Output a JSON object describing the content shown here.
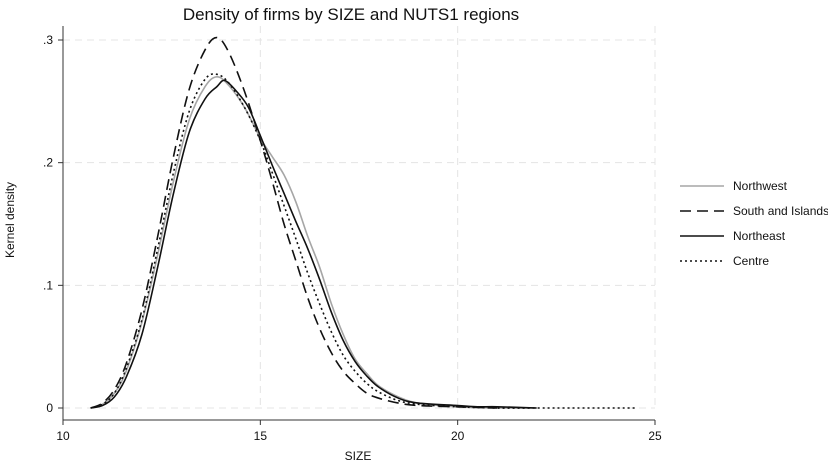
{
  "chart_data": {
    "type": "line",
    "title": "Density of firms by SIZE and NUTS1 regions",
    "xlabel": "SIZE",
    "ylabel": "Kernel density",
    "xlim": [
      10,
      25
    ],
    "ylim": [
      0,
      0.3
    ],
    "x_ticks": [
      10,
      15,
      20,
      25
    ],
    "x_tick_labels": [
      "10",
      "15",
      "20",
      "25"
    ],
    "y_ticks": [
      0,
      0.1,
      0.2,
      0.3
    ],
    "y_tick_labels": [
      "0",
      ".1",
      ".2",
      ".3"
    ],
    "grid": true,
    "legend_placement": "right",
    "series": [
      {
        "name": "Northwest",
        "color": "#a6a6a6",
        "dash": "solid",
        "points": [
          [
            10.7,
            0
          ],
          [
            11,
            0.003
          ],
          [
            11.3,
            0.012
          ],
          [
            11.6,
            0.03
          ],
          [
            12,
            0.07
          ],
          [
            12.4,
            0.125
          ],
          [
            12.8,
            0.185
          ],
          [
            13.2,
            0.235
          ],
          [
            13.6,
            0.262
          ],
          [
            13.9,
            0.27
          ],
          [
            14.2,
            0.263
          ],
          [
            14.6,
            0.245
          ],
          [
            15,
            0.22
          ],
          [
            15.3,
            0.205
          ],
          [
            15.6,
            0.19
          ],
          [
            15.9,
            0.168
          ],
          [
            16.2,
            0.14
          ],
          [
            16.5,
            0.115
          ],
          [
            16.8,
            0.085
          ],
          [
            17.1,
            0.06
          ],
          [
            17.4,
            0.04
          ],
          [
            17.7,
            0.028
          ],
          [
            18,
            0.018
          ],
          [
            18.5,
            0.009
          ],
          [
            19,
            0.004
          ],
          [
            20,
            0.001
          ],
          [
            21,
            0
          ],
          [
            22,
            0
          ]
        ]
      },
      {
        "name": "South and Islands",
        "color": "#111111",
        "dash": "dashed",
        "points": [
          [
            10.7,
            0
          ],
          [
            11,
            0.004
          ],
          [
            11.3,
            0.015
          ],
          [
            11.6,
            0.036
          ],
          [
            12,
            0.08
          ],
          [
            12.4,
            0.14
          ],
          [
            12.8,
            0.205
          ],
          [
            13.2,
            0.26
          ],
          [
            13.6,
            0.292
          ],
          [
            13.9,
            0.302
          ],
          [
            14.2,
            0.29
          ],
          [
            14.6,
            0.258
          ],
          [
            15,
            0.218
          ],
          [
            15.3,
            0.185
          ],
          [
            15.6,
            0.15
          ],
          [
            15.9,
            0.12
          ],
          [
            16.2,
            0.09
          ],
          [
            16.5,
            0.065
          ],
          [
            16.8,
            0.045
          ],
          [
            17.1,
            0.03
          ],
          [
            17.4,
            0.02
          ],
          [
            17.7,
            0.012
          ],
          [
            18,
            0.008
          ],
          [
            18.5,
            0.004
          ],
          [
            19,
            0.002
          ],
          [
            20,
            0.001
          ],
          [
            21,
            0
          ]
        ]
      },
      {
        "name": "Northeast",
        "color": "#111111",
        "dash": "solid",
        "points": [
          [
            10.7,
            0
          ],
          [
            11,
            0.002
          ],
          [
            11.3,
            0.009
          ],
          [
            11.6,
            0.025
          ],
          [
            12,
            0.06
          ],
          [
            12.4,
            0.115
          ],
          [
            12.8,
            0.175
          ],
          [
            13.2,
            0.225
          ],
          [
            13.6,
            0.252
          ],
          [
            13.9,
            0.262
          ],
          [
            14.1,
            0.267
          ],
          [
            14.4,
            0.258
          ],
          [
            14.7,
            0.245
          ],
          [
            15,
            0.222
          ],
          [
            15.3,
            0.198
          ],
          [
            15.6,
            0.175
          ],
          [
            15.9,
            0.152
          ],
          [
            16.2,
            0.13
          ],
          [
            16.5,
            0.105
          ],
          [
            16.8,
            0.078
          ],
          [
            17.1,
            0.055
          ],
          [
            17.4,
            0.038
          ],
          [
            17.7,
            0.026
          ],
          [
            18,
            0.017
          ],
          [
            18.5,
            0.008
          ],
          [
            19,
            0.004
          ],
          [
            20,
            0.002
          ],
          [
            20.5,
            0.001
          ],
          [
            21,
            0.001
          ],
          [
            22,
            0
          ]
        ]
      },
      {
        "name": "Centre",
        "color": "#111111",
        "dash": "dotted",
        "points": [
          [
            10.7,
            0
          ],
          [
            11,
            0.003
          ],
          [
            11.3,
            0.012
          ],
          [
            11.6,
            0.032
          ],
          [
            12,
            0.072
          ],
          [
            12.4,
            0.13
          ],
          [
            12.8,
            0.192
          ],
          [
            13.2,
            0.242
          ],
          [
            13.6,
            0.268
          ],
          [
            13.9,
            0.272
          ],
          [
            14.2,
            0.265
          ],
          [
            14.6,
            0.245
          ],
          [
            15,
            0.218
          ],
          [
            15.3,
            0.192
          ],
          [
            15.6,
            0.165
          ],
          [
            15.9,
            0.138
          ],
          [
            16.2,
            0.11
          ],
          [
            16.5,
            0.085
          ],
          [
            16.8,
            0.062
          ],
          [
            17.1,
            0.043
          ],
          [
            17.4,
            0.03
          ],
          [
            17.7,
            0.02
          ],
          [
            18,
            0.013
          ],
          [
            18.5,
            0.006
          ],
          [
            19,
            0.003
          ],
          [
            20,
            0.001
          ],
          [
            21,
            0
          ],
          [
            22,
            0
          ],
          [
            23,
            0
          ],
          [
            24.5,
            0
          ]
        ]
      }
    ]
  }
}
